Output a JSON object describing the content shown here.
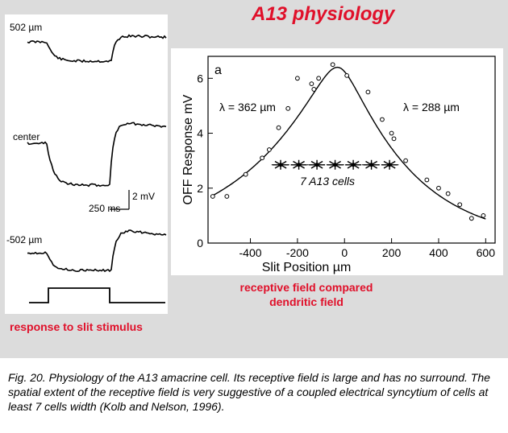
{
  "title": "A13 physiology",
  "left_panel": {
    "label_top": "502 µm",
    "label_center": "center",
    "label_bottom": "-502 µm",
    "scale_time": "250 ms",
    "scale_voltage": "2 mV",
    "caption": "response to slit stimulus"
  },
  "right_panel_caption_line1": "receptive field compared",
  "right_panel_caption_line2": "dendritic field",
  "figure_caption": "Fig. 20. Physiology of the A13 amacrine cell. Its receptive field is large and has no surround. The spatial extent of the receptive field is very suggestive of a coupled electrical syncytium of cells at least 7 cells width (Kolb and Nelson, 1996).",
  "chart_data": {
    "type": "scatter",
    "panel_label": "a",
    "xlabel": "Slit Position µm",
    "ylabel": "OFF Response mV",
    "xlim": [
      -580,
      640
    ],
    "ylim": [
      0,
      6.8
    ],
    "xticks": [
      -400,
      -200,
      0,
      200,
      400,
      600
    ],
    "yticks": [
      0,
      2,
      4,
      6
    ],
    "points_x": [
      -560,
      -500,
      -420,
      -350,
      -320,
      -280,
      -240,
      -200,
      -140,
      -130,
      -110,
      -50,
      10,
      100,
      160,
      200,
      210,
      260,
      350,
      400,
      440,
      490,
      540,
      590
    ],
    "points_y": [
      1.7,
      1.7,
      2.5,
      3.1,
      3.4,
      4.2,
      4.9,
      6.0,
      5.8,
      5.6,
      6.0,
      6.5,
      6.1,
      5.5,
      4.5,
      4.0,
      3.8,
      3.0,
      2.3,
      2.0,
      1.8,
      1.4,
      0.9,
      1.0
    ],
    "fit_curve": {
      "peak_x": -30,
      "peak_y": 6.4,
      "lambda_left": 362,
      "lambda_right": 288,
      "label_left": "λ = 362 µm",
      "label_right": "λ = 288 µm"
    },
    "dendritic_field": {
      "label": "7 A13 cells",
      "y": 2.85,
      "x_start": -310,
      "x_end": 230,
      "count": 7
    }
  }
}
